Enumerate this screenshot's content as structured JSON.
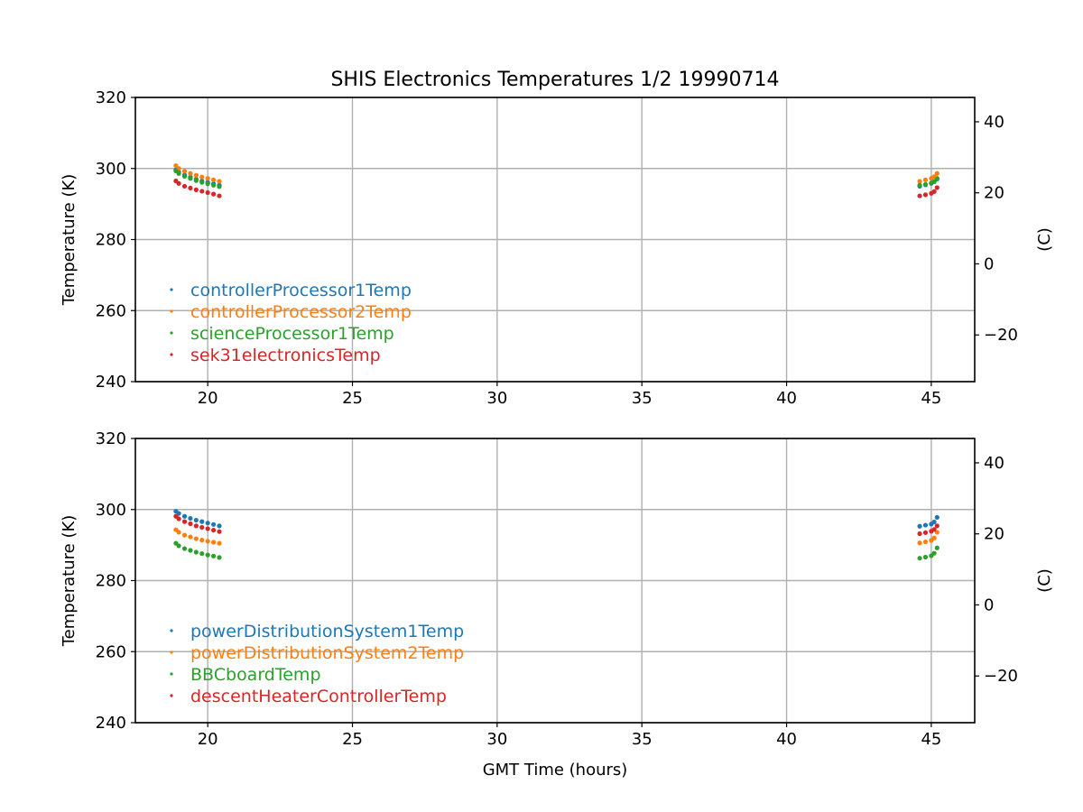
{
  "figure": {
    "title": "SHIS Electronics Temperatures 1/2 19990714"
  },
  "chart_data": [
    {
      "type": "scatter",
      "xlabel": "",
      "ylabel": "Temperature (K)",
      "y2label": "(C)",
      "xlim": [
        17.5,
        46.5
      ],
      "ylim": [
        240,
        320
      ],
      "y2lim": [
        -33.15,
        46.85
      ],
      "xticks": [
        "20",
        "25",
        "30",
        "35",
        "40",
        "45"
      ],
      "yticks": [
        "240",
        "260",
        "280",
        "300",
        "320"
      ],
      "y2ticks": [
        "−20",
        "0",
        "20",
        "40"
      ],
      "grid": true,
      "legend_position": "lower-left",
      "series": [
        {
          "name": "controllerProcessor1Temp",
          "color": "#1f77b4",
          "x": [
            18.9,
            19.0,
            19.2,
            19.4,
            19.6,
            19.8,
            20.0,
            20.2,
            20.4,
            44.6,
            44.8,
            45.0,
            45.1,
            45.2
          ],
          "y": [
            299.6,
            299.0,
            298.2,
            297.6,
            297.0,
            296.5,
            296.1,
            295.7,
            295.3,
            295.0,
            295.4,
            295.8,
            296.3,
            297.2
          ]
        },
        {
          "name": "controllerProcessor2Temp",
          "color": "#ff7f0e",
          "x": [
            18.9,
            19.0,
            19.2,
            19.4,
            19.6,
            19.8,
            20.0,
            20.2,
            20.4,
            44.6,
            44.8,
            45.0,
            45.1,
            45.2
          ],
          "y": [
            300.8,
            300.0,
            299.2,
            298.6,
            298.1,
            297.6,
            297.2,
            296.8,
            296.4,
            296.4,
            296.8,
            297.2,
            297.7,
            298.6
          ]
        },
        {
          "name": "scienceProcessor1Temp",
          "color": "#2ca02c",
          "x": [
            18.9,
            19.0,
            19.2,
            19.4,
            19.6,
            19.8,
            20.0,
            20.2,
            20.4,
            44.6,
            44.8,
            45.0,
            45.1,
            45.2
          ],
          "y": [
            299.3,
            298.6,
            297.8,
            297.2,
            296.6,
            296.1,
            295.7,
            295.3,
            294.9,
            295.3,
            295.5,
            295.9,
            296.3,
            297.0
          ]
        },
        {
          "name": "sek31electronicsTemp",
          "color": "#d62728",
          "x": [
            18.9,
            19.0,
            19.2,
            19.4,
            19.6,
            19.8,
            20.0,
            20.2,
            20.4,
            44.6,
            44.8,
            45.0,
            45.1,
            45.2
          ],
          "y": [
            296.5,
            295.8,
            295.0,
            294.5,
            294.0,
            293.6,
            293.2,
            292.8,
            292.3,
            292.3,
            292.6,
            293.0,
            293.5,
            294.6
          ]
        }
      ]
    },
    {
      "type": "scatter",
      "xlabel": "GMT Time (hours)",
      "ylabel": "Temperature (K)",
      "y2label": "(C)",
      "xlim": [
        17.5,
        46.5
      ],
      "ylim": [
        240,
        320
      ],
      "y2lim": [
        -33.15,
        46.85
      ],
      "xticks": [
        "20",
        "25",
        "30",
        "35",
        "40",
        "45"
      ],
      "yticks": [
        "240",
        "260",
        "280",
        "300",
        "320"
      ],
      "y2ticks": [
        "−20",
        "0",
        "20",
        "40"
      ],
      "grid": true,
      "legend_position": "lower-left",
      "series": [
        {
          "name": "powerDistributionSystem1Temp",
          "color": "#1f77b4",
          "x": [
            18.9,
            19.0,
            19.2,
            19.4,
            19.6,
            19.8,
            20.0,
            20.2,
            20.4,
            44.6,
            44.8,
            45.0,
            45.1,
            45.2
          ],
          "y": [
            299.5,
            298.9,
            298.1,
            297.5,
            297.0,
            296.6,
            296.2,
            295.8,
            295.4,
            295.3,
            295.6,
            295.9,
            296.5,
            297.8
          ]
        },
        {
          "name": "powerDistributionSystem2Temp",
          "color": "#ff7f0e",
          "x": [
            18.9,
            19.0,
            19.2,
            19.4,
            19.6,
            19.8,
            20.0,
            20.2,
            20.4,
            44.6,
            44.8,
            45.0,
            45.1,
            45.2
          ],
          "y": [
            294.3,
            293.6,
            292.8,
            292.3,
            291.8,
            291.4,
            291.1,
            290.8,
            290.5,
            290.6,
            290.9,
            291.3,
            292.0,
            293.6
          ]
        },
        {
          "name": "BBCboardTemp",
          "color": "#2ca02c",
          "x": [
            18.9,
            19.0,
            19.2,
            19.4,
            19.6,
            19.8,
            20.0,
            20.2,
            20.4,
            44.6,
            44.8,
            45.0,
            45.1,
            45.2
          ],
          "y": [
            290.5,
            289.8,
            289.0,
            288.5,
            288.0,
            287.6,
            287.2,
            286.9,
            286.5,
            286.3,
            286.6,
            287.0,
            287.7,
            289.2
          ]
        },
        {
          "name": "descentHeaterControllerTemp",
          "color": "#d62728",
          "x": [
            18.9,
            19.0,
            19.2,
            19.4,
            19.6,
            19.8,
            20.0,
            20.2,
            20.4,
            44.6,
            44.8,
            45.0,
            45.1,
            45.2
          ],
          "y": [
            298.1,
            297.4,
            296.6,
            296.0,
            295.4,
            295.0,
            294.6,
            294.2,
            293.8,
            293.2,
            293.5,
            293.9,
            294.4,
            295.4
          ]
        }
      ]
    }
  ]
}
